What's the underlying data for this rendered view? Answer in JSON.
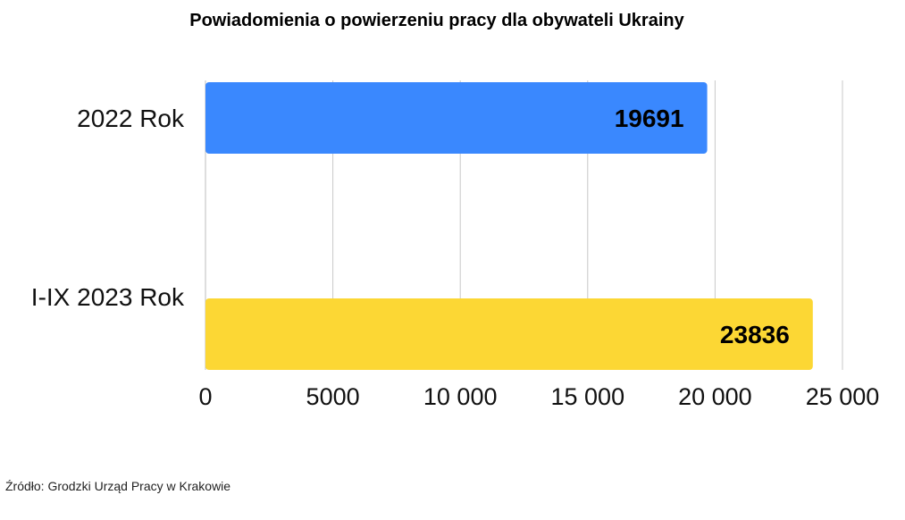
{
  "chart_data": {
    "type": "bar",
    "orientation": "horizontal",
    "title": "Powiadomienia o powierzeniu pracy dla obywateli Ukrainy",
    "categories": [
      "2022 Rok",
      "I-IX 2023 Rok"
    ],
    "values": [
      19691,
      23836
    ],
    "value_labels": [
      "19691",
      "23836"
    ],
    "bar_colors": [
      "#3a88fe",
      "#fcd734"
    ],
    "xlim": [
      0,
      25000
    ],
    "xticks": [
      0,
      5000,
      10000,
      15000,
      20000,
      25000
    ],
    "xtick_labels": [
      "0",
      "5000",
      "10 000",
      "15 000",
      "20 000",
      "25 000"
    ],
    "grid": "vertical",
    "xlabel": "",
    "ylabel": ""
  },
  "source": "Źródło: Grodzki Urząd Pracy w Krakowie"
}
